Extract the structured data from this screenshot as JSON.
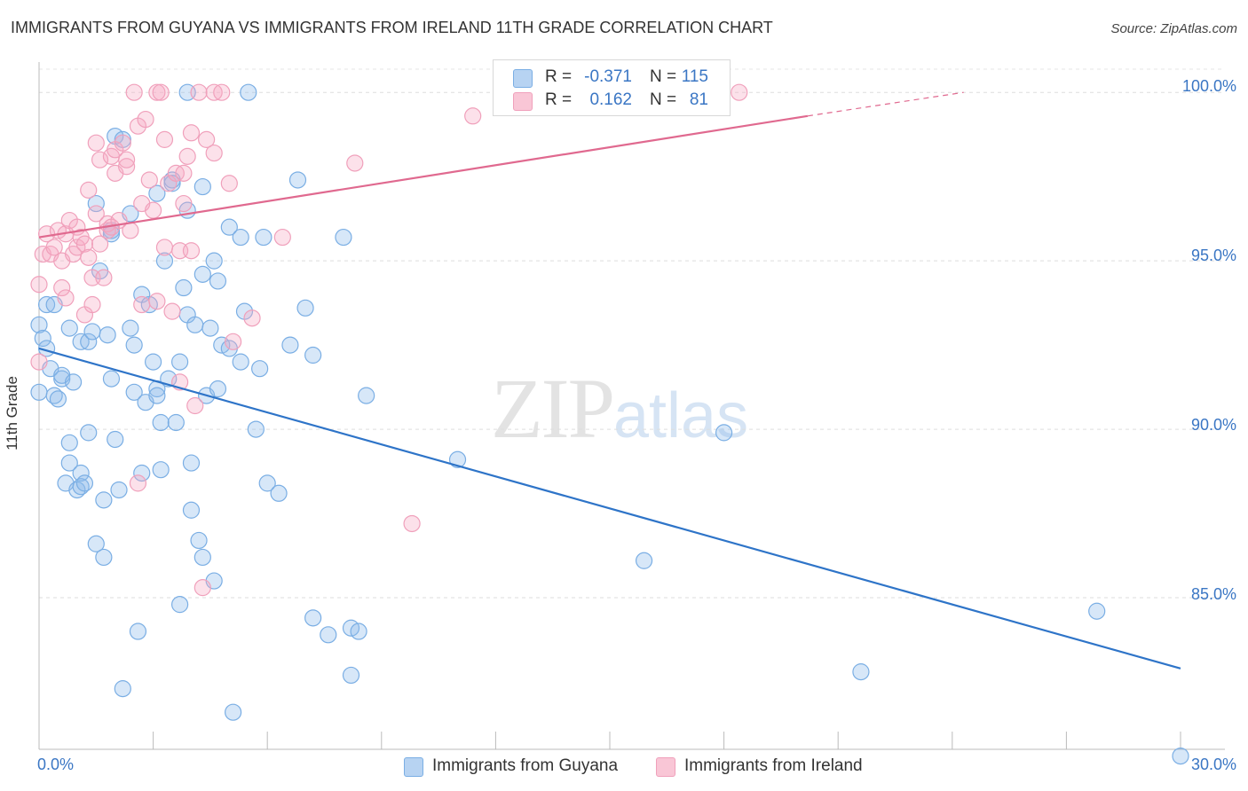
{
  "title": "IMMIGRANTS FROM GUYANA VS IMMIGRANTS FROM IRELAND 11TH GRADE CORRELATION CHART",
  "source": "Source: ZipAtlas.com",
  "watermark": {
    "zip": "ZIP",
    "atlas": "atlas"
  },
  "colors": {
    "blue": "#7aaee4",
    "blue_line": "#2e74c8",
    "pink": "#f0a0bb",
    "pink_line": "#e0698f",
    "axis_text": "#3a76c4"
  },
  "legend": {
    "rows": [
      {
        "r_label": "R =",
        "r_value": "-0.371",
        "n_label": "N =",
        "n_value": "115"
      },
      {
        "r_label": "R =",
        "r_value": "0.162",
        "n_label": "N =",
        "n_value": "81"
      }
    ]
  },
  "bottom_legend": [
    "Immigrants from Guyana",
    "Immigrants from Ireland"
  ],
  "chart_data": {
    "type": "scatter",
    "xlabel": "",
    "ylabel": "11th Grade",
    "xlim": [
      0,
      30
    ],
    "ylim": [
      80.5,
      100.9
    ],
    "x_tick_labels": [
      "0.0%",
      "30.0%"
    ],
    "y_ticks": [
      85,
      90,
      95,
      100
    ],
    "y_tick_labels": [
      "85.0%",
      "90.0%",
      "95.0%",
      "100.0%"
    ],
    "grid": true,
    "series": [
      {
        "name": "Immigrants from Guyana",
        "trend": {
          "x": [
            0,
            30
          ],
          "y": [
            92.4,
            82.9
          ],
          "dashed_from": null
        },
        "points": [
          [
            0.0,
            91.1
          ],
          [
            0.0,
            93.1
          ],
          [
            0.1,
            92.7
          ],
          [
            0.2,
            92.4
          ],
          [
            0.2,
            93.7
          ],
          [
            0.3,
            91.8
          ],
          [
            0.4,
            93.7
          ],
          [
            0.4,
            91.0
          ],
          [
            0.5,
            90.9
          ],
          [
            0.6,
            91.5
          ],
          [
            0.6,
            91.6
          ],
          [
            0.7,
            88.4
          ],
          [
            0.8,
            89.0
          ],
          [
            0.8,
            93.0
          ],
          [
            0.8,
            89.6
          ],
          [
            0.9,
            91.4
          ],
          [
            1.0,
            88.2
          ],
          [
            1.1,
            88.7
          ],
          [
            1.1,
            88.3
          ],
          [
            1.1,
            92.6
          ],
          [
            1.2,
            88.4
          ],
          [
            1.3,
            92.6
          ],
          [
            1.3,
            89.9
          ],
          [
            1.4,
            92.9
          ],
          [
            1.5,
            86.6
          ],
          [
            1.5,
            96.7
          ],
          [
            1.6,
            94.7
          ],
          [
            1.7,
            86.2
          ],
          [
            1.7,
            87.9
          ],
          [
            1.8,
            92.8
          ],
          [
            1.9,
            91.5
          ],
          [
            1.9,
            95.9
          ],
          [
            1.9,
            95.8
          ],
          [
            2.0,
            89.7
          ],
          [
            2.0,
            98.7
          ],
          [
            2.1,
            88.2
          ],
          [
            2.2,
            82.3
          ],
          [
            2.2,
            98.6
          ],
          [
            2.4,
            93.0
          ],
          [
            2.4,
            96.4
          ],
          [
            2.5,
            91.1
          ],
          [
            2.5,
            92.5
          ],
          [
            2.6,
            84.0
          ],
          [
            2.7,
            88.7
          ],
          [
            2.7,
            94.0
          ],
          [
            2.8,
            90.8
          ],
          [
            2.9,
            93.7
          ],
          [
            3.0,
            92.0
          ],
          [
            3.1,
            91.2
          ],
          [
            3.1,
            97.0
          ],
          [
            3.1,
            91.0
          ],
          [
            3.2,
            90.2
          ],
          [
            3.2,
            88.8
          ],
          [
            3.3,
            95.0
          ],
          [
            3.4,
            91.5
          ],
          [
            3.5,
            97.4
          ],
          [
            3.5,
            97.3
          ],
          [
            3.6,
            90.2
          ],
          [
            3.7,
            92.0
          ],
          [
            3.7,
            84.8
          ],
          [
            3.8,
            94.2
          ],
          [
            3.9,
            100.0
          ],
          [
            3.9,
            96.5
          ],
          [
            3.9,
            93.4
          ],
          [
            4.0,
            89.0
          ],
          [
            4.0,
            87.6
          ],
          [
            4.1,
            93.1
          ],
          [
            4.2,
            86.7
          ],
          [
            4.3,
            86.2
          ],
          [
            4.3,
            97.2
          ],
          [
            4.3,
            94.6
          ],
          [
            4.4,
            91.0
          ],
          [
            4.5,
            93.0
          ],
          [
            4.6,
            95.0
          ],
          [
            4.6,
            85.5
          ],
          [
            4.7,
            94.4
          ],
          [
            4.7,
            91.2
          ],
          [
            4.8,
            92.5
          ],
          [
            5.0,
            96.0
          ],
          [
            5.0,
            92.4
          ],
          [
            5.1,
            81.6
          ],
          [
            5.3,
            95.7
          ],
          [
            5.3,
            92.0
          ],
          [
            5.4,
            93.5
          ],
          [
            5.5,
            100.0
          ],
          [
            5.7,
            90.0
          ],
          [
            5.8,
            91.8
          ],
          [
            5.9,
            95.7
          ],
          [
            6.0,
            88.4
          ],
          [
            6.3,
            88.1
          ],
          [
            6.6,
            92.5
          ],
          [
            6.8,
            97.4
          ],
          [
            7.0,
            93.6
          ],
          [
            7.2,
            92.2
          ],
          [
            7.2,
            84.4
          ],
          [
            7.6,
            83.9
          ],
          [
            8.0,
            95.7
          ],
          [
            8.2,
            84.1
          ],
          [
            8.2,
            82.7
          ],
          [
            8.4,
            84.0
          ],
          [
            8.6,
            91.0
          ],
          [
            11.0,
            89.1
          ],
          [
            15.9,
            86.1
          ],
          [
            18.0,
            89.9
          ],
          [
            21.6,
            82.8
          ],
          [
            27.8,
            84.6
          ],
          [
            30.0,
            80.3
          ]
        ]
      },
      {
        "name": "Immigrants from Ireland",
        "trend": {
          "x": [
            0,
            20.2
          ],
          "y": [
            95.7,
            99.3
          ],
          "dashed_to": [
            24.3,
            100.0
          ]
        },
        "points": [
          [
            0.0,
            94.3
          ],
          [
            0.0,
            92.0
          ],
          [
            0.1,
            95.2
          ],
          [
            0.2,
            95.8
          ],
          [
            0.3,
            95.2
          ],
          [
            0.4,
            95.4
          ],
          [
            0.5,
            95.9
          ],
          [
            0.6,
            95.0
          ],
          [
            0.6,
            94.2
          ],
          [
            0.7,
            93.9
          ],
          [
            0.7,
            95.8
          ],
          [
            0.8,
            96.2
          ],
          [
            0.9,
            95.2
          ],
          [
            1.0,
            96.0
          ],
          [
            1.0,
            95.4
          ],
          [
            1.1,
            95.7
          ],
          [
            1.2,
            93.4
          ],
          [
            1.2,
            95.5
          ],
          [
            1.3,
            97.1
          ],
          [
            1.3,
            95.1
          ],
          [
            1.4,
            94.5
          ],
          [
            1.4,
            93.7
          ],
          [
            1.5,
            96.4
          ],
          [
            1.5,
            98.5
          ],
          [
            1.6,
            98.0
          ],
          [
            1.6,
            95.5
          ],
          [
            1.7,
            94.5
          ],
          [
            1.8,
            95.9
          ],
          [
            1.8,
            96.1
          ],
          [
            1.9,
            96.0
          ],
          [
            1.9,
            98.1
          ],
          [
            2.0,
            98.3
          ],
          [
            2.0,
            97.6
          ],
          [
            2.1,
            96.2
          ],
          [
            2.2,
            98.5
          ],
          [
            2.3,
            97.8
          ],
          [
            2.3,
            98.0
          ],
          [
            2.4,
            95.9
          ],
          [
            2.5,
            100.0
          ],
          [
            2.6,
            88.4
          ],
          [
            2.6,
            99.0
          ],
          [
            2.7,
            96.7
          ],
          [
            2.7,
            93.7
          ],
          [
            2.8,
            99.2
          ],
          [
            2.9,
            97.4
          ],
          [
            3.0,
            96.5
          ],
          [
            3.1,
            100.0
          ],
          [
            3.1,
            93.8
          ],
          [
            3.2,
            100.0
          ],
          [
            3.3,
            95.4
          ],
          [
            3.3,
            98.6
          ],
          [
            3.4,
            97.3
          ],
          [
            3.5,
            93.5
          ],
          [
            3.6,
            97.6
          ],
          [
            3.7,
            95.3
          ],
          [
            3.7,
            91.4
          ],
          [
            3.8,
            97.6
          ],
          [
            3.8,
            96.7
          ],
          [
            3.9,
            98.1
          ],
          [
            4.0,
            95.3
          ],
          [
            4.0,
            98.8
          ],
          [
            4.1,
            90.7
          ],
          [
            4.2,
            100.0
          ],
          [
            4.3,
            85.3
          ],
          [
            4.4,
            98.6
          ],
          [
            4.6,
            100.0
          ],
          [
            4.6,
            98.2
          ],
          [
            4.8,
            100.0
          ],
          [
            5.0,
            97.3
          ],
          [
            5.1,
            92.6
          ],
          [
            5.6,
            93.3
          ],
          [
            6.4,
            95.7
          ],
          [
            8.3,
            97.9
          ],
          [
            9.8,
            87.2
          ],
          [
            11.4,
            99.3
          ],
          [
            18.4,
            100.0
          ]
        ]
      }
    ]
  }
}
